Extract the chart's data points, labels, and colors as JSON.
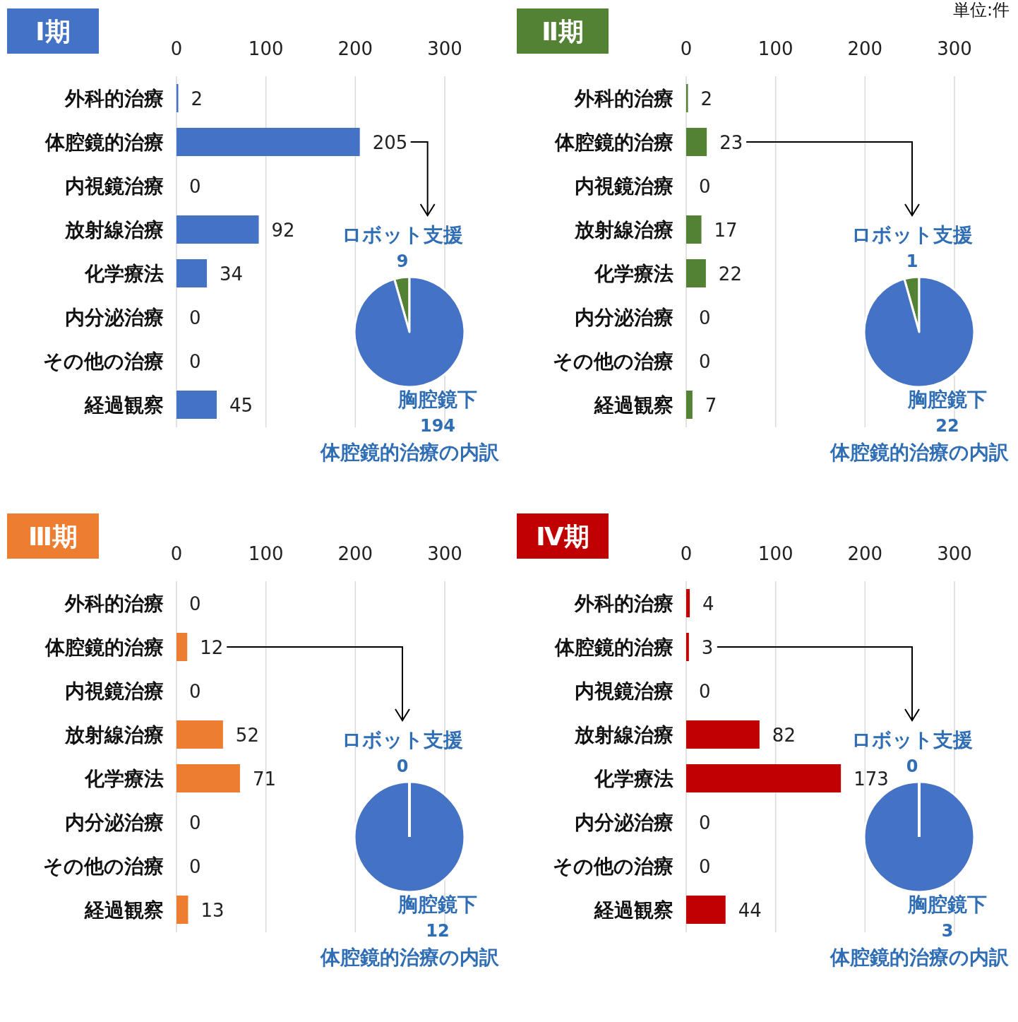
{
  "chart_data": [
    {
      "type": "bar",
      "orientation": "horizontal",
      "title": "Ⅰ期",
      "categories": [
        "外科的治療",
        "体腔鏡的治療",
        "内視鏡治療",
        "放射線治療",
        "化学療法",
        "内分泌治療",
        "その他の治療",
        "経過観察"
      ],
      "values": [
        2,
        205,
        0,
        92,
        34,
        0,
        0,
        45
      ],
      "color": "#4472c4",
      "xlim": [
        0,
        300
      ],
      "xticks": [
        0,
        100,
        200,
        300
      ],
      "grid": "x",
      "data_labels": true
    },
    {
      "type": "pie",
      "title": "体腔鏡的治療の内訳",
      "categories": [
        "ロボット支援",
        "胸腔鏡下"
      ],
      "values": [
        9,
        194
      ],
      "colors": [
        "#548235",
        "#4472c4"
      ],
      "value_labels": [
        "9",
        "194"
      ]
    },
    {
      "type": "bar",
      "orientation": "horizontal",
      "title": "Ⅱ期",
      "categories": [
        "外科的治療",
        "体腔鏡的治療",
        "内視鏡治療",
        "放射線治療",
        "化学療法",
        "内分泌治療",
        "その他の治療",
        "経過観察"
      ],
      "values": [
        2,
        23,
        0,
        17,
        22,
        0,
        0,
        7
      ],
      "color": "#548235",
      "xlim": [
        0,
        300
      ],
      "xticks": [
        0,
        100,
        200,
        300
      ],
      "grid": "x",
      "data_labels": true,
      "annotations": [
        "単位:件"
      ]
    },
    {
      "type": "pie",
      "title": "体腔鏡的治療の内訳",
      "categories": [
        "ロボット支援",
        "胸腔鏡下"
      ],
      "values": [
        1,
        22
      ],
      "colors": [
        "#548235",
        "#4472c4"
      ],
      "value_labels": [
        "1",
        "22"
      ]
    },
    {
      "type": "bar",
      "orientation": "horizontal",
      "title": "Ⅲ期",
      "categories": [
        "外科的治療",
        "体腔鏡的治療",
        "内視鏡治療",
        "放射線治療",
        "化学療法",
        "内分泌治療",
        "その他の治療",
        "経過観察"
      ],
      "values": [
        0,
        12,
        0,
        52,
        71,
        0,
        0,
        13
      ],
      "color": "#ed7d31",
      "xlim": [
        0,
        300
      ],
      "xticks": [
        0,
        100,
        200,
        300
      ],
      "grid": "x",
      "data_labels": true
    },
    {
      "type": "pie",
      "title": "体腔鏡的治療の内訳",
      "categories": [
        "ロボット支援",
        "胸腔鏡下"
      ],
      "values": [
        0,
        12
      ],
      "colors": [
        "#548235",
        "#4472c4"
      ],
      "value_labels": [
        "0",
        "12"
      ]
    },
    {
      "type": "bar",
      "orientation": "horizontal",
      "title": "Ⅳ期",
      "categories": [
        "外科的治療",
        "体腔鏡的治療",
        "内視鏡治療",
        "放射線治療",
        "化学療法",
        "内分泌治療",
        "その他の治療",
        "経過観察"
      ],
      "values": [
        4,
        3,
        0,
        82,
        173,
        0,
        0,
        44
      ],
      "color": "#c00000",
      "xlim": [
        0,
        300
      ],
      "xticks": [
        0,
        100,
        200,
        300
      ],
      "grid": "x",
      "data_labels": true
    },
    {
      "type": "pie",
      "title": "体腔鏡的治療の内訳",
      "categories": [
        "ロボット支援",
        "胸腔鏡下"
      ],
      "values": [
        0,
        3
      ],
      "colors": [
        "#548235",
        "#4472c4"
      ],
      "value_labels": [
        "0",
        "3"
      ]
    }
  ]
}
